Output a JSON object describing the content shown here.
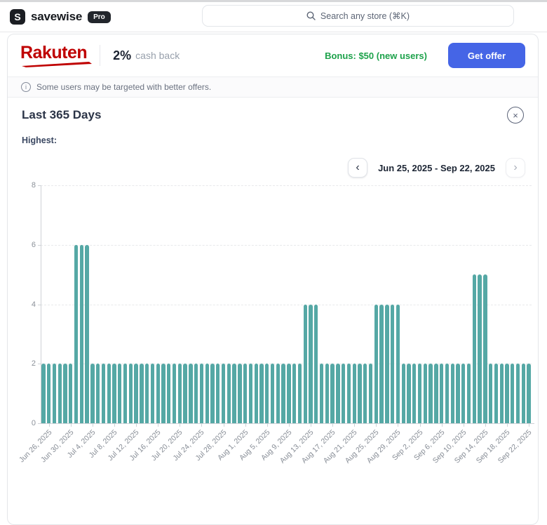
{
  "header": {
    "brand": "savewise",
    "logo_glyph": "S",
    "badge": "Pro",
    "search_placeholder": "Search any store (⌘K)"
  },
  "offer": {
    "store": "Rakuten",
    "rate": "2%",
    "rate_label": "cash back",
    "bonus": "Bonus: $50 (new users)",
    "cta": "Get offer"
  },
  "notice": {
    "text": "Some users may be targeted with better offers."
  },
  "panel": {
    "title": "Last 365 Days",
    "highest_label": "Highest:",
    "date_range": "Jun 25, 2025 - Sep 22, 2025"
  },
  "icons": {
    "search": "magnifier",
    "info": "i",
    "close": "×",
    "prev": "‹",
    "next": "›"
  },
  "colors": {
    "bar_teal": "#55a8a5",
    "cta_blue": "#4565e6",
    "bonus_green": "#1da24b",
    "rakuten_red": "#bf0000"
  },
  "chart_data": {
    "type": "bar",
    "title": "Last 365 Days",
    "x_start": "Jun 25, 2025",
    "x_end": "Sep 22, 2025",
    "ylim": [
      0,
      8
    ],
    "y_ticks": [
      0,
      2,
      4,
      6,
      8
    ],
    "grid": "dashed-horizontal",
    "legend": "none",
    "bar_color": "#55a8a5",
    "values": [
      2,
      2,
      2,
      2,
      2,
      2,
      6,
      6,
      6,
      2,
      2,
      2,
      2,
      2,
      2,
      2,
      2,
      2,
      2,
      2,
      2,
      2,
      2,
      2,
      2,
      2,
      2,
      2,
      2,
      2,
      2,
      2,
      2,
      2,
      2,
      2,
      2,
      2,
      2,
      2,
      2,
      2,
      2,
      2,
      2,
      2,
      2,
      2,
      4,
      4,
      4,
      2,
      2,
      2,
      2,
      2,
      2,
      2,
      2,
      2,
      2,
      4,
      4,
      4,
      4,
      4,
      2,
      2,
      2,
      2,
      2,
      2,
      2,
      2,
      2,
      2,
      2,
      2,
      2,
      5,
      5,
      5,
      2,
      2,
      2,
      2,
      2,
      2,
      2,
      2
    ],
    "x_first_tick_index": 1,
    "x_tick_every": 4,
    "x_tick_labels": [
      "Jun 26, 2025",
      "Jun 30, 2025",
      "Jul 4, 2025",
      "Jul 8, 2025",
      "Jul 12, 2025",
      "Jul 16, 2025",
      "Jul 20, 2025",
      "Jul 24, 2025",
      "Jul 28, 2025",
      "Aug 1, 2025",
      "Aug 5, 2025",
      "Aug 9, 2025",
      "Aug 13, 2025",
      "Aug 17, 2025",
      "Aug 21, 2025",
      "Aug 25, 2025",
      "Aug 29, 2025",
      "Sep 2, 2025",
      "Sep 6, 2025",
      "Sep 10, 2025",
      "Sep 14, 2025",
      "Sep 18, 2025",
      "Sep 22, 2025"
    ]
  }
}
